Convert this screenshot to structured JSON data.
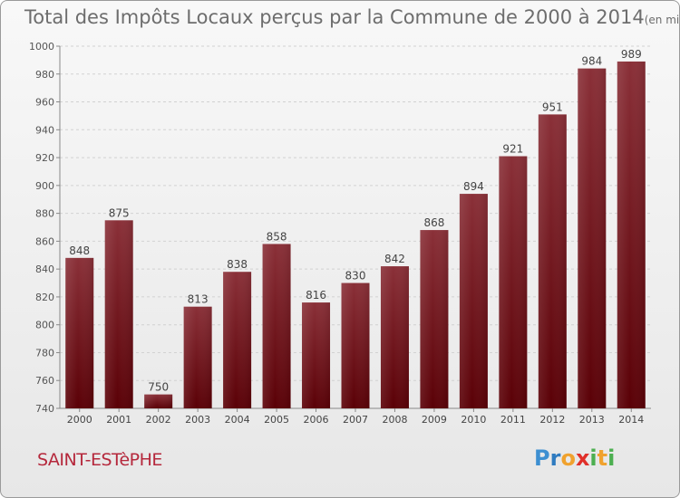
{
  "header": {
    "title": "Total des Impôts Locaux perçus par la Commune de 2000 à 2014",
    "unit": "(en milliers d'€)"
  },
  "footer": {
    "commune": "SAINT-ESTèPHE",
    "logo_letters": [
      "P",
      "r",
      "o",
      "x",
      "i",
      "t",
      "i"
    ]
  },
  "colors": {
    "bar_top": "#8a3038",
    "bar_bottom": "#5a0006",
    "commune_text": "#b5283c",
    "logo": [
      "#3d8fd1",
      "#2f7bc0",
      "#f0a22e",
      "#e0302a",
      "#4caf50",
      "#f0a22e",
      "#4caf50"
    ]
  },
  "chart_data": {
    "type": "bar",
    "title": "Total des Impôts Locaux perçus par la Commune de 2000 à 2014",
    "xlabel": "",
    "ylabel": "",
    "categories": [
      "2000",
      "2001",
      "2002",
      "2003",
      "2004",
      "2005",
      "2006",
      "2007",
      "2008",
      "2009",
      "2010",
      "2011",
      "2012",
      "2013",
      "2014"
    ],
    "values": [
      848,
      875,
      750,
      813,
      838,
      858,
      816,
      830,
      842,
      868,
      894,
      921,
      951,
      984,
      989
    ],
    "ylim": [
      740,
      1000
    ],
    "yticks": [
      740,
      760,
      780,
      800,
      820,
      840,
      860,
      880,
      900,
      920,
      940,
      960,
      980,
      1000
    ],
    "grid": true
  }
}
